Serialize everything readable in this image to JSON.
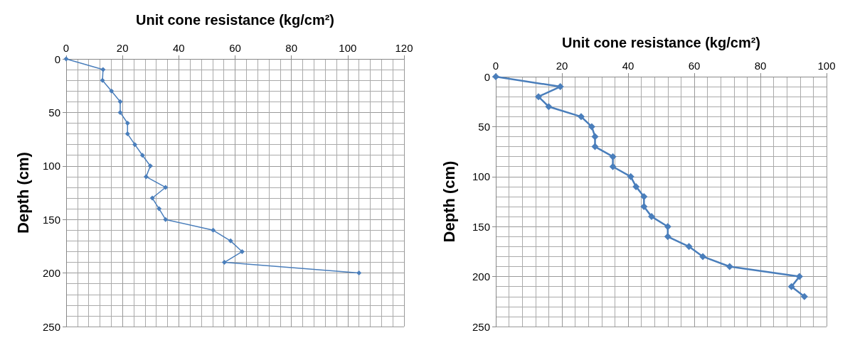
{
  "chart_data": [
    {
      "type": "line",
      "xlabel": "Unit cone resistance (kg/cm²)",
      "ylabel": "Depth (cm)",
      "xlim": [
        0,
        120
      ],
      "xticks": [
        0,
        20,
        40,
        60,
        80,
        100,
        120
      ],
      "ylim": [
        250,
        0
      ],
      "yticks": [
        0,
        50,
        100,
        150,
        200,
        250
      ],
      "grid": true,
      "marker": "diamond",
      "series": [
        {
          "color": "#4a7ebb",
          "x": [
            0,
            13.1,
            12.9,
            16.1,
            19.2,
            19.2,
            21.8,
            21.8,
            24.4,
            27.1,
            29.9,
            28.4,
            35.3,
            30.6,
            33,
            35.3,
            52.2,
            58.4,
            62.5,
            56.2,
            104
          ],
          "values": [
            0,
            10,
            20,
            30,
            40,
            50,
            60,
            70,
            80,
            90,
            100,
            110,
            120,
            130,
            140,
            150,
            160,
            170,
            180,
            190,
            200
          ]
        }
      ]
    },
    {
      "type": "line",
      "xlabel": "Unit cone resistance (kg/cm²)",
      "ylabel": "Depth (cm)",
      "xlim": [
        0,
        100
      ],
      "xticks": [
        0,
        20,
        40,
        60,
        80,
        100
      ],
      "ylim": [
        250,
        0
      ],
      "yticks": [
        0,
        50,
        100,
        150,
        200,
        250
      ],
      "grid": true,
      "marker": "diamond",
      "series": [
        {
          "color": "#4a7ebb",
          "x": [
            0,
            19.5,
            12.9,
            16,
            25.8,
            29,
            30,
            30,
            35.4,
            35.4,
            40.8,
            42.4,
            44.8,
            44.8,
            47.1,
            52,
            52,
            58.4,
            62.6,
            70.7,
            91.8,
            89.4,
            93.3
          ],
          "values": [
            0,
            10,
            20,
            30,
            40,
            50,
            60,
            70,
            80,
            90,
            100,
            110,
            120,
            130,
            140,
            150,
            160,
            170,
            180,
            190,
            200,
            210,
            220
          ]
        }
      ]
    }
  ]
}
